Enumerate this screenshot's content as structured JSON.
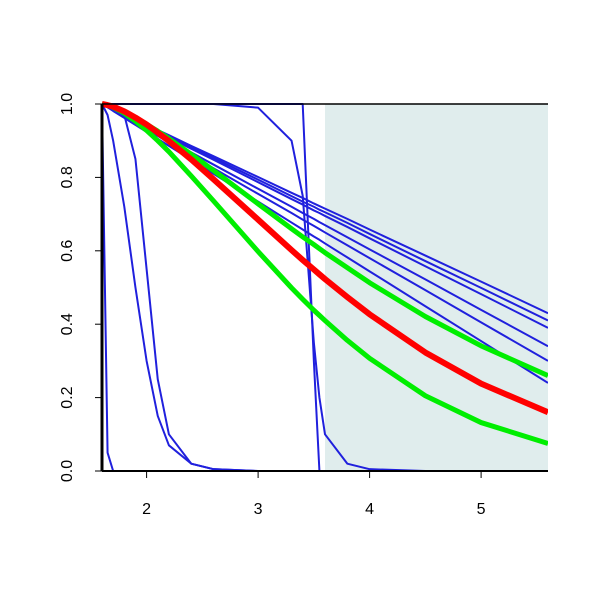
{
  "chart_data": {
    "type": "line",
    "x": [
      1.6,
      1.65,
      1.7,
      1.8,
      1.9,
      2.0,
      2.1,
      2.2,
      2.4,
      2.6,
      3.0,
      3.3,
      3.4,
      3.5,
      3.55,
      3.6,
      3.8,
      4.0,
      4.5,
      5.0,
      5.6
    ],
    "xlim": [
      1.6,
      5.6
    ],
    "xticks": [
      2,
      3,
      4,
      5
    ],
    "ylim": [
      0,
      1
    ],
    "yticks": [
      {
        "value": 0,
        "label": "0.0"
      },
      {
        "value": 0.2,
        "label": "0.2"
      },
      {
        "value": 0.4,
        "label": "0.4"
      },
      {
        "value": 0.6,
        "label": "0.6"
      },
      {
        "value": 0.8,
        "label": "0.8"
      },
      {
        "value": 1,
        "label": "1.0"
      }
    ],
    "shaded_region": {
      "x": [
        3.6,
        5.6
      ],
      "color": "#e0eded"
    },
    "series": [
      {
        "color": "#2020dd",
        "line_width": 2,
        "values": [
          1,
          0.05,
          0,
          0,
          0,
          0,
          0,
          0,
          0,
          0,
          0,
          0,
          0,
          0,
          0,
          0,
          0,
          0,
          0,
          0,
          0
        ]
      },
      {
        "color": "#2020dd",
        "line_width": 2,
        "values": [
          1,
          0.97,
          0.9,
          0.72,
          0.5,
          0.3,
          0.15,
          0.07,
          0.02,
          0.005,
          0,
          0,
          0,
          0,
          0,
          0,
          0,
          0,
          0,
          0,
          0
        ]
      },
      {
        "color": "#2020dd",
        "line_width": 2,
        "values": [
          1,
          1,
          1,
          0.97,
          0.85,
          0.55,
          0.25,
          0.1,
          0.02,
          0.005,
          0,
          0,
          0,
          0,
          0,
          0,
          0,
          0,
          0,
          0,
          0
        ]
      },
      {
        "color": "#2020dd",
        "line_width": 2,
        "values": [
          1,
          1,
          1,
          1,
          1,
          1,
          1,
          1,
          1,
          1,
          0.99,
          0.9,
          0.75,
          0.35,
          0.2,
          0.1,
          0.02,
          0.005,
          0,
          0,
          0
        ]
      },
      {
        "color": "#2020dd",
        "line_width": 2,
        "values": [
          1,
          1,
          1,
          1,
          1,
          1,
          1,
          1,
          1,
          1,
          1,
          1,
          1,
          0.3,
          0,
          0,
          0,
          0,
          0,
          0,
          0
        ]
      },
      {
        "color": "#2020dd",
        "line_width": 2,
        "values": [
          1,
          0.993,
          0.986,
          0.972,
          0.957,
          0.943,
          0.929,
          0.915,
          0.886,
          0.858,
          0.801,
          0.758,
          0.744,
          0.729,
          0.722,
          0.715,
          0.687,
          0.658,
          0.587,
          0.516,
          0.43
        ]
      },
      {
        "color": "#2020dd",
        "line_width": 2,
        "values": [
          1,
          0.993,
          0.985,
          0.971,
          0.956,
          0.941,
          0.926,
          0.912,
          0.882,
          0.853,
          0.794,
          0.749,
          0.734,
          0.72,
          0.712,
          0.705,
          0.676,
          0.646,
          0.572,
          0.499,
          0.41
        ]
      },
      {
        "color": "#2020dd",
        "line_width": 2,
        "values": [
          1,
          0.992,
          0.985,
          0.97,
          0.954,
          0.939,
          0.924,
          0.909,
          0.878,
          0.848,
          0.787,
          0.741,
          0.726,
          0.71,
          0.703,
          0.695,
          0.665,
          0.634,
          0.558,
          0.482,
          0.39
        ]
      },
      {
        "color": "#2020dd",
        "line_width": 2,
        "values": [
          1,
          0.992,
          0.984,
          0.967,
          0.951,
          0.934,
          0.918,
          0.901,
          0.868,
          0.835,
          0.769,
          0.72,
          0.703,
          0.687,
          0.678,
          0.67,
          0.637,
          0.604,
          0.522,
          0.439,
          0.34
        ]
      },
      {
        "color": "#2020dd",
        "line_width": 2,
        "values": [
          1,
          0.991,
          0.983,
          0.965,
          0.948,
          0.93,
          0.913,
          0.895,
          0.86,
          0.825,
          0.755,
          0.703,
          0.685,
          0.668,
          0.659,
          0.65,
          0.615,
          0.58,
          0.493,
          0.405,
          0.3
        ]
      },
      {
        "color": "#2020dd",
        "line_width": 2,
        "values": [
          1,
          0.991,
          0.981,
          0.962,
          0.943,
          0.924,
          0.905,
          0.886,
          0.848,
          0.81,
          0.734,
          0.677,
          0.658,
          0.639,
          0.63,
          0.62,
          0.582,
          0.544,
          0.449,
          0.354,
          0.24
        ]
      },
      {
        "color": "#00ee00",
        "line_width": 5,
        "values": [
          1,
          0.997,
          0.992,
          0.978,
          0.963,
          0.945,
          0.926,
          0.906,
          0.863,
          0.819,
          0.728,
          0.66,
          0.638,
          0.617,
          0.606,
          0.595,
          0.554,
          0.513,
          0.421,
          0.341,
          0.26
        ]
      },
      {
        "color": "#00ee00",
        "line_width": 5,
        "values": [
          1,
          0.997,
          0.991,
          0.975,
          0.953,
          0.928,
          0.9,
          0.87,
          0.804,
          0.736,
          0.598,
          0.499,
          0.468,
          0.438,
          0.424,
          0.41,
          0.356,
          0.307,
          0.205,
          0.132,
          0.075
        ]
      },
      {
        "color": "#ff0000",
        "line_width": 6,
        "values": [
          1,
          0.997,
          0.993,
          0.98,
          0.963,
          0.944,
          0.922,
          0.899,
          0.849,
          0.795,
          0.685,
          0.602,
          0.575,
          0.549,
          0.536,
          0.523,
          0.474,
          0.427,
          0.323,
          0.238,
          0.16
        ]
      }
    ]
  }
}
